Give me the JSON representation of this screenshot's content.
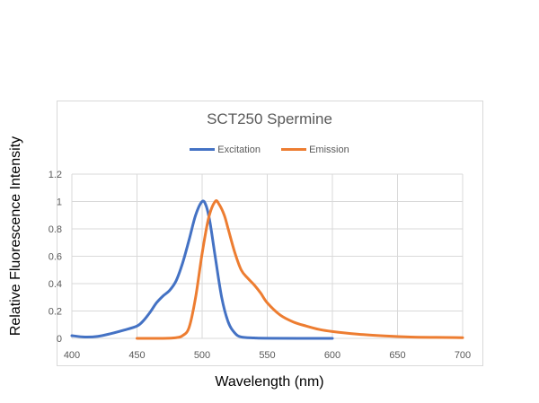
{
  "chart_data": {
    "type": "line",
    "title": "SCT250 Spermine",
    "xlabel": "Wavelength (nm)",
    "ylabel": "Relative Fluorescence Intensity",
    "xlim": [
      400,
      700
    ],
    "ylim": [
      0,
      1.2
    ],
    "xticks": [
      400,
      450,
      500,
      550,
      600,
      650,
      700
    ],
    "yticks": [
      0,
      0.2,
      0.4,
      0.6,
      0.8,
      1,
      1.2
    ],
    "grid": true,
    "legend": "top",
    "series": [
      {
        "name": "Excitation",
        "color": "#4472c4",
        "x": [
          400,
          410,
          420,
          430,
          440,
          450,
          455,
          460,
          465,
          470,
          475,
          480,
          485,
          490,
          495,
          500,
          503,
          506,
          510,
          515,
          520,
          525,
          530,
          540,
          550,
          600
        ],
        "y": [
          0.02,
          0.01,
          0.015,
          0.035,
          0.06,
          0.09,
          0.13,
          0.19,
          0.26,
          0.31,
          0.35,
          0.42,
          0.55,
          0.72,
          0.9,
          1.0,
          0.97,
          0.85,
          0.6,
          0.3,
          0.12,
          0.04,
          0.01,
          0.003,
          0.001,
          0
        ]
      },
      {
        "name": "Emission",
        "color": "#ed7d31",
        "x": [
          450,
          470,
          480,
          485,
          490,
          495,
          500,
          505,
          510,
          513,
          517,
          520,
          525,
          530,
          535,
          540,
          545,
          550,
          560,
          570,
          580,
          590,
          600,
          620,
          640,
          660,
          680,
          700
        ],
        "y": [
          0,
          0,
          0.005,
          0.02,
          0.08,
          0.3,
          0.62,
          0.88,
          1.0,
          0.98,
          0.9,
          0.8,
          0.63,
          0.5,
          0.44,
          0.39,
          0.33,
          0.26,
          0.17,
          0.12,
          0.09,
          0.065,
          0.05,
          0.03,
          0.018,
          0.01,
          0.007,
          0.005
        ]
      }
    ]
  }
}
